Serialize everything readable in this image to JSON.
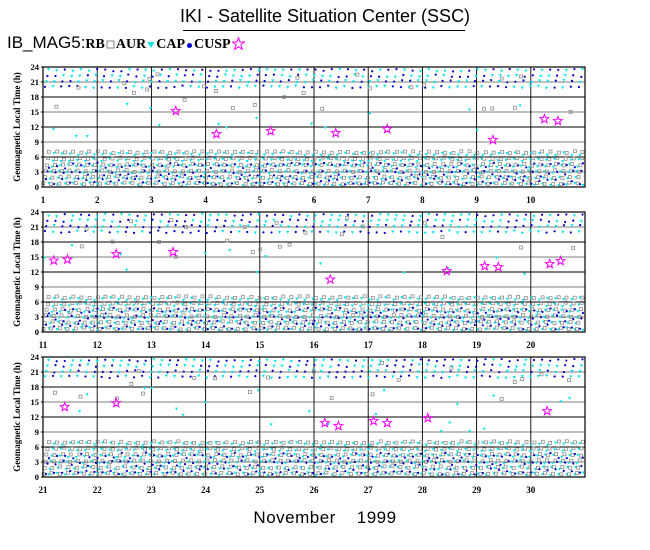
{
  "header": {
    "title": "IKI - Satellite Situation Center (SSC)"
  },
  "legend": {
    "instrument": "IB_MAG5:",
    "items": [
      {
        "key": "RB",
        "label": "RB",
        "symbol": "square",
        "color": "#808080"
      },
      {
        "key": "AUR",
        "label": "AUR",
        "symbol": "triangle",
        "color": "#00e5ee"
      },
      {
        "key": "CAP",
        "label": "CAP",
        "symbol": "dot",
        "color": "#0000cd"
      },
      {
        "key": "CUSP",
        "label": "CUSP",
        "symbol": "star",
        "color": "#ff00ff"
      }
    ]
  },
  "footer": {
    "month": "November",
    "year": "1999"
  },
  "chart_data": {
    "type": "scatter",
    "ylabel": "Geomagnetic Local Time (h)",
    "ylim": [
      0,
      24
    ],
    "yticks": [
      "0",
      "3",
      "6",
      "9",
      "12",
      "15",
      "18",
      "21",
      "24"
    ],
    "panels": [
      {
        "days": [
          "1",
          "2",
          "3",
          "4",
          "5",
          "6",
          "7",
          "8",
          "9",
          "10"
        ],
        "xlim": [
          1,
          11
        ]
      },
      {
        "days": [
          "11",
          "12",
          "13",
          "14",
          "15",
          "16",
          "17",
          "18",
          "19",
          "20"
        ],
        "xlim": [
          11,
          21
        ]
      },
      {
        "days": [
          "21",
          "22",
          "23",
          "24",
          "25",
          "26",
          "27",
          "28",
          "29",
          "30"
        ],
        "xlim": [
          21,
          31
        ]
      }
    ],
    "series": [
      {
        "name": "RB",
        "pattern": "dense diagonal streaks of grey squares, GLT ~0-8 and ~15-23 each orbit"
      },
      {
        "name": "AUR",
        "pattern": "cyan triangles along the polar-cap passes, GLT ~0-24"
      },
      {
        "name": "CAP",
        "pattern": "blue dots, GLT ~0-6 and ~20-24"
      }
    ],
    "cusp_events": [
      {
        "day": 3.45,
        "glt": 15.2
      },
      {
        "day": 4.2,
        "glt": 10.6
      },
      {
        "day": 5.2,
        "glt": 11.2
      },
      {
        "day": 6.4,
        "glt": 10.8
      },
      {
        "day": 7.35,
        "glt": 11.6
      },
      {
        "day": 9.3,
        "glt": 9.4
      },
      {
        "day": 10.25,
        "glt": 13.6
      },
      {
        "day": 10.5,
        "glt": 13.2
      },
      {
        "day": 11.2,
        "glt": 14.3
      },
      {
        "day": 11.45,
        "glt": 14.5
      },
      {
        "day": 12.35,
        "glt": 15.6
      },
      {
        "day": 13.4,
        "glt": 16.0
      },
      {
        "day": 16.3,
        "glt": 10.5
      },
      {
        "day": 18.45,
        "glt": 12.2
      },
      {
        "day": 19.15,
        "glt": 13.2
      },
      {
        "day": 19.4,
        "glt": 13.0
      },
      {
        "day": 20.35,
        "glt": 13.6
      },
      {
        "day": 20.55,
        "glt": 14.2
      },
      {
        "day": 21.4,
        "glt": 14.0
      },
      {
        "day": 22.35,
        "glt": 14.8
      },
      {
        "day": 26.2,
        "glt": 10.8
      },
      {
        "day": 26.45,
        "glt": 10.2
      },
      {
        "day": 27.1,
        "glt": 11.2
      },
      {
        "day": 27.35,
        "glt": 10.8
      },
      {
        "day": 28.1,
        "glt": 11.8
      },
      {
        "day": 30.3,
        "glt": 13.2
      }
    ]
  }
}
